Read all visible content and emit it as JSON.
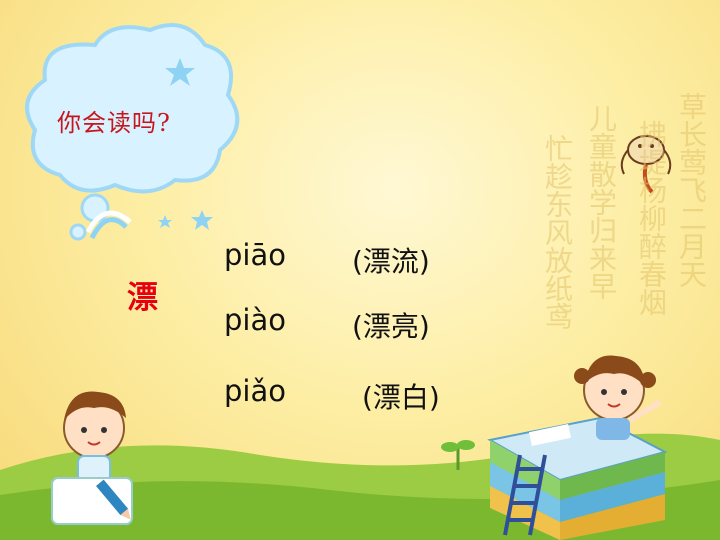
{
  "bubble": {
    "title": "你会读吗?"
  },
  "main_char": "漂",
  "readings": [
    {
      "pinyin": "piāo",
      "word": "(漂流)"
    },
    {
      "pinyin": "piào",
      "word": "(漂亮)"
    },
    {
      "pinyin": "piǎo",
      "word": "(漂白)"
    }
  ],
  "poem": {
    "columns": [
      "草长莺飞二月天",
      "拂堤杨柳醉春烟",
      "儿童散学归来早",
      "忙趁东风放纸鸢"
    ]
  },
  "colors": {
    "background": "#fdeea4",
    "grass": "#8cc63f",
    "accent_red": "#e60012"
  },
  "icons": [
    "cloud-icon",
    "star-icon",
    "rainbow-icon",
    "kite-icon",
    "boy-icon",
    "girl-icon",
    "books-icon",
    "ladder-icon",
    "sprout-icon",
    "pencil-icon"
  ]
}
